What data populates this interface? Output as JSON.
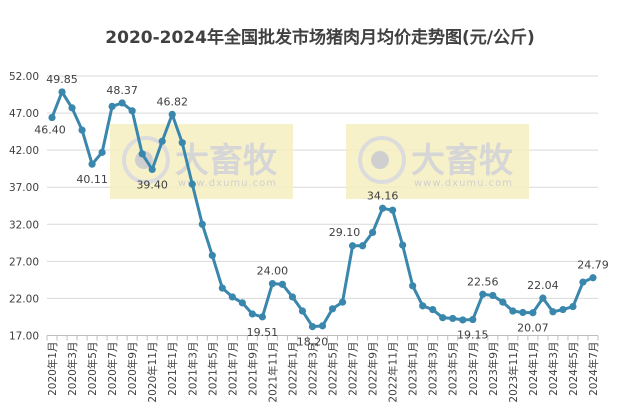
{
  "chart_data": {
    "type": "line",
    "title": "2020-2024年全国批发市场猪肉月均价走势图(元/公斤)",
    "xlabel": "",
    "ylabel": "",
    "ylim": [
      17,
      52
    ],
    "yticks": [
      "17.00",
      "22.00",
      "27.00",
      "32.00",
      "37.00",
      "42.00",
      "47.00",
      "52.00"
    ],
    "grid": true,
    "line_color": "#3a87ad",
    "x": [
      "2020年1月",
      "2020年2月",
      "2020年3月",
      "2020年4月",
      "2020年5月",
      "2020年6月",
      "2020年7月",
      "2020年8月",
      "2020年9月",
      "2020年10月",
      "2020年11月",
      "2020年12月",
      "2021年1月",
      "2021年2月",
      "2021年3月",
      "2021年4月",
      "2021年5月",
      "2021年6月",
      "2021年7月",
      "2021年8月",
      "2021年9月",
      "2021年10月",
      "2021年11月",
      "2021年12月",
      "2022年1月",
      "2022年2月",
      "2022年3月",
      "2022年4月",
      "2022年5月",
      "2022年6月",
      "2022年7月",
      "2022年8月",
      "2022年9月",
      "2022年10月",
      "2022年11月",
      "2022年12月",
      "2023年1月",
      "2023年2月",
      "2023年3月",
      "2023年4月",
      "2023年5月",
      "2023年6月",
      "2023年7月",
      "2023年8月",
      "2023年9月",
      "2023年10月",
      "2023年11月",
      "2023年12月",
      "2024年1月",
      "2024年2月",
      "2024年3月",
      "2024年4月",
      "2024年5月",
      "2024年6月",
      "2024年7月"
    ],
    "values": [
      46.4,
      49.85,
      47.7,
      44.7,
      40.11,
      41.7,
      47.9,
      48.37,
      47.3,
      41.5,
      39.4,
      43.2,
      46.82,
      43.0,
      37.4,
      32.0,
      27.8,
      23.4,
      22.2,
      21.4,
      19.9,
      19.51,
      24.0,
      23.9,
      22.2,
      20.3,
      18.2,
      18.3,
      20.6,
      21.5,
      29.1,
      29.1,
      30.9,
      34.16,
      33.9,
      29.2,
      23.7,
      21.0,
      20.5,
      19.4,
      19.3,
      19.1,
      19.15,
      22.56,
      22.4,
      21.5,
      20.3,
      20.1,
      20.07,
      22.04,
      20.2,
      20.5,
      20.9,
      24.2,
      24.79
    ],
    "data_labels": [
      {
        "index": 0,
        "text": "46.40",
        "pos": "below-left"
      },
      {
        "index": 1,
        "text": "49.85",
        "pos": "above"
      },
      {
        "index": 4,
        "text": "40.11",
        "pos": "below"
      },
      {
        "index": 7,
        "text": "48.37",
        "pos": "above"
      },
      {
        "index": 10,
        "text": "39.40",
        "pos": "below"
      },
      {
        "index": 12,
        "text": "46.82",
        "pos": "above"
      },
      {
        "index": 21,
        "text": "19.51",
        "pos": "below"
      },
      {
        "index": 22,
        "text": "24.00",
        "pos": "above"
      },
      {
        "index": 26,
        "text": "18.20",
        "pos": "below"
      },
      {
        "index": 30,
        "text": "29.10",
        "pos": "above-left"
      },
      {
        "index": 33,
        "text": "34.16",
        "pos": "above"
      },
      {
        "index": 42,
        "text": "19.15",
        "pos": "below"
      },
      {
        "index": 43,
        "text": "22.56",
        "pos": "above"
      },
      {
        "index": 48,
        "text": "20.07",
        "pos": "below"
      },
      {
        "index": 49,
        "text": "22.04",
        "pos": "above"
      },
      {
        "index": 54,
        "text": "24.79",
        "pos": "above"
      }
    ]
  },
  "watermark": {
    "brand": "大畜牧",
    "url": "www.dxumu.com",
    "bg": "#f5efbf"
  }
}
